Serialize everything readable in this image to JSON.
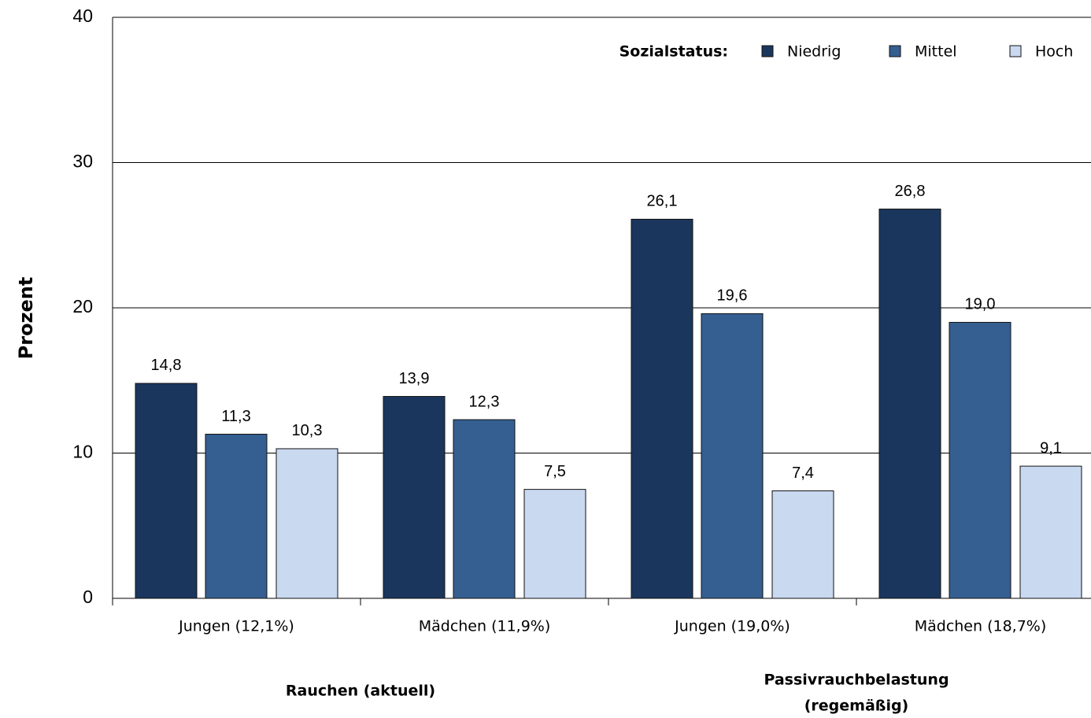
{
  "chart_data": {
    "type": "bar",
    "y_label": "Prozent",
    "legend_title": "Sozialstatus:",
    "categories": [
      "Jungen (12,1%)",
      "Mädchen (11,9%)",
      "Jungen (19,0%)",
      "Mädchen (18,7%)"
    ],
    "groups": [
      {
        "label": [
          "Rauchen (aktuell)"
        ]
      },
      {
        "label": [
          "Passivrauchbelastung",
          "(regemäßig)"
        ]
      }
    ],
    "series": [
      {
        "name": "Niedrig",
        "color": "#1b365d",
        "values": [
          14.8,
          13.9,
          26.1,
          26.8
        ],
        "value_labels": [
          "14,8",
          "13,9",
          "26,1",
          "26,8"
        ]
      },
      {
        "name": "Mittel",
        "color": "#355f91",
        "values": [
          11.3,
          12.3,
          19.6,
          19.0
        ],
        "value_labels": [
          "11,3",
          "12,3",
          "19,6",
          "19,0"
        ]
      },
      {
        "name": "Hoch",
        "color": "#c9d9f0",
        "values": [
          10.3,
          7.5,
          7.4,
          9.1
        ],
        "value_labels": [
          "10,3",
          "7,5",
          "7,4",
          "9,1"
        ]
      }
    ],
    "ylim": [
      0,
      40
    ],
    "yticks": [
      0,
      10,
      20,
      30,
      40
    ],
    "grid": true,
    "legend": "top-right"
  }
}
